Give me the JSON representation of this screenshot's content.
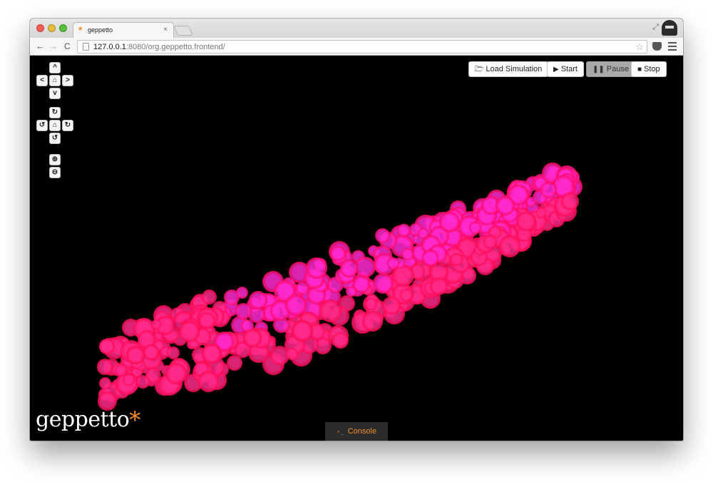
{
  "tab": {
    "favicon": "*",
    "title": "geppetto",
    "close": "×"
  },
  "toolbar": {
    "back": "←",
    "forward": "→",
    "reload": "C",
    "url_host": "127.0.0.1",
    "url_rest": ":8080/org.geppetto.frontend/",
    "star": "☆"
  },
  "camera": {
    "pan_up": "^",
    "pan_left": "<",
    "pan_home": "⌂",
    "pan_right": ">",
    "pan_down": "v",
    "rot_up": "↻",
    "rot_left": "↺",
    "rot_home": "⌂",
    "rot_right": "↻",
    "rot_down": "↺",
    "zoom_in": "⊕",
    "zoom_out": "⊖"
  },
  "sim": {
    "load_icon": "🗁",
    "load_label": "Load Simulation",
    "start_icon": "▶",
    "start_label": "Start",
    "pause_icon": "❚❚",
    "pause_label": "Pause",
    "stop_icon": "■",
    "stop_label": "Stop"
  },
  "logo": {
    "text": "geppetto",
    "star": "*"
  },
  "console": {
    "icon": "›_",
    "label": "Console"
  },
  "colors": {
    "particle_core": "#ff2a8a",
    "particle_glow": "#ff0044",
    "accent": "#f28c28"
  }
}
